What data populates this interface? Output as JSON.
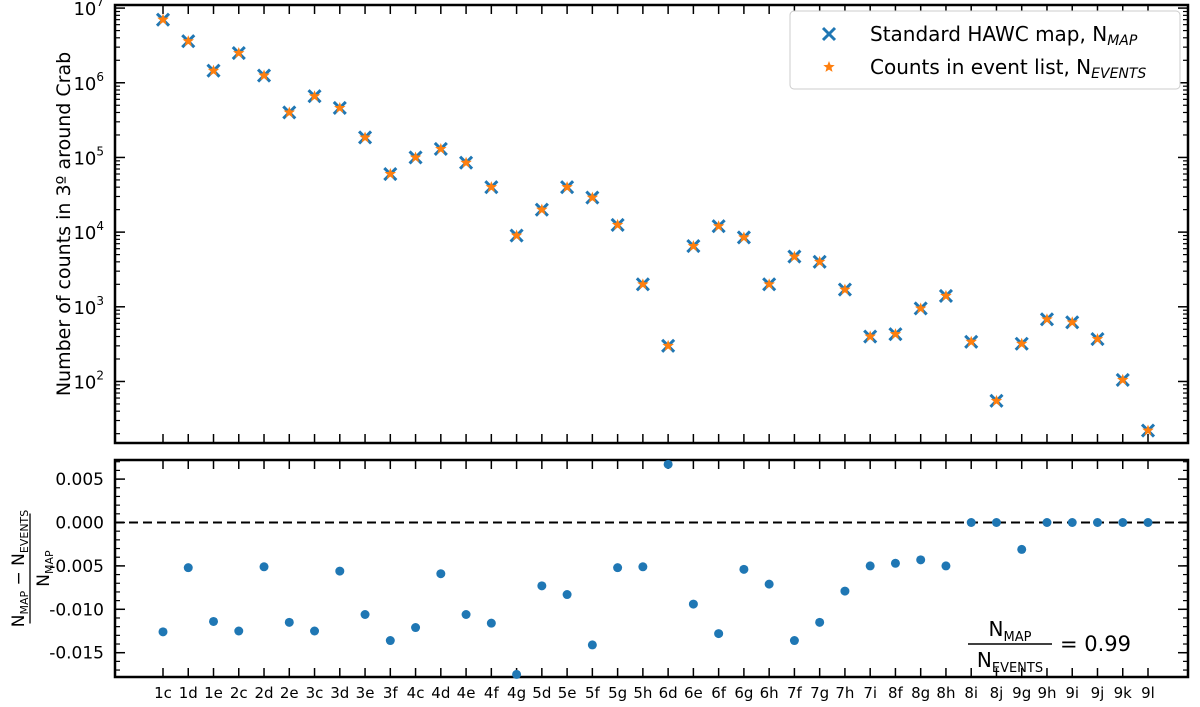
{
  "chart_data": [
    {
      "type": "scatter",
      "panel": "top",
      "yscale": "log",
      "ylabel": "Number of counts in 3º around Crab",
      "ylim": [
        15,
        11000000
      ],
      "yticks": [
        100,
        1000,
        10000,
        100000,
        1000000,
        10000000
      ],
      "yticklabels": [
        {
          "base": "10",
          "exp": "2"
        },
        {
          "base": "10",
          "exp": "3"
        },
        {
          "base": "10",
          "exp": "4"
        },
        {
          "base": "10",
          "exp": "5"
        },
        {
          "base": "10",
          "exp": "6"
        },
        {
          "base": "10",
          "exp": "7"
        }
      ],
      "categories": [
        "1c",
        "1d",
        "1e",
        "2c",
        "2d",
        "2e",
        "3c",
        "3d",
        "3e",
        "3f",
        "4c",
        "4d",
        "4e",
        "4f",
        "4g",
        "5d",
        "5e",
        "5f",
        "5g",
        "5h",
        "6d",
        "6e",
        "6f",
        "6g",
        "6h",
        "7f",
        "7g",
        "7h",
        "7i",
        "8f",
        "8g",
        "8h",
        "8i",
        "8j",
        "9g",
        "9h",
        "9i",
        "9j",
        "9k",
        "9l"
      ],
      "legend_location": "upper right",
      "series": [
        {
          "name": "Standard HAWC map, N",
          "name_sub": "MAP",
          "marker": "x",
          "color": "#1f77b4",
          "values": [
            7000000,
            3600000,
            1450000,
            2500000,
            1250000,
            400000,
            660000,
            460000,
            185000,
            60000,
            100000,
            130000,
            85000,
            40000,
            9000,
            20000,
            40000,
            29000,
            12500,
            2000,
            300,
            6500,
            12000,
            8500,
            2000,
            4700,
            4000,
            1700,
            400,
            430,
            950,
            1400,
            340,
            55,
            320,
            680,
            620,
            370,
            105,
            22
          ]
        },
        {
          "name": "Counts in event list, N",
          "name_sub": "EVENTS",
          "marker": "star",
          "color": "#ff7f0e",
          "values": [
            7000000,
            3600000,
            1450000,
            2500000,
            1250000,
            400000,
            660000,
            460000,
            185000,
            60000,
            100000,
            130000,
            85000,
            40000,
            9000,
            20000,
            40000,
            29000,
            12500,
            2000,
            300,
            6500,
            12000,
            8500,
            2000,
            4700,
            4000,
            1700,
            400,
            430,
            950,
            1400,
            340,
            55,
            320,
            680,
            620,
            370,
            105,
            22
          ]
        }
      ]
    },
    {
      "type": "scatter",
      "panel": "bottom",
      "ylim": [
        -0.0178,
        0.0072
      ],
      "yticks": [
        0.005,
        0.0,
        -0.005,
        -0.01,
        -0.015
      ],
      "yticklabels": [
        "0.005",
        "0.000",
        "-0.005",
        "-0.010",
        "-0.015"
      ],
      "ylabel_num_left": "N",
      "ylabel_num_left_sub": "MAP",
      "ylabel_num_op": "−",
      "ylabel_num_right": "N",
      "ylabel_num_right_sub": "EVENTS",
      "ylabel_den": "N",
      "ylabel_den_sub": "MAP",
      "reference_line": 0.0,
      "annotation": {
        "num": "N",
        "num_sub": "MAP",
        "den": "N",
        "den_sub": "EVENTS",
        "value": "= 0.99"
      },
      "series": [
        {
          "color": "#1f77b4",
          "marker": "o",
          "values": [
            -0.0126,
            -0.0052,
            -0.0114,
            -0.0125,
            -0.0051,
            -0.0115,
            -0.0125,
            -0.0056,
            -0.0106,
            -0.0136,
            -0.0121,
            -0.0059,
            -0.0106,
            -0.0116,
            -0.0175,
            -0.0073,
            -0.0083,
            -0.0141,
            -0.0052,
            -0.0051,
            0.0067,
            -0.0094,
            -0.0128,
            -0.0054,
            -0.0071,
            -0.0136,
            -0.0115,
            -0.0079,
            -0.005,
            -0.0047,
            -0.0043,
            -0.005,
            0.0,
            0.0,
            -0.0031,
            0.0,
            0.0,
            0.0,
            0.0,
            0.0
          ]
        }
      ]
    }
  ]
}
